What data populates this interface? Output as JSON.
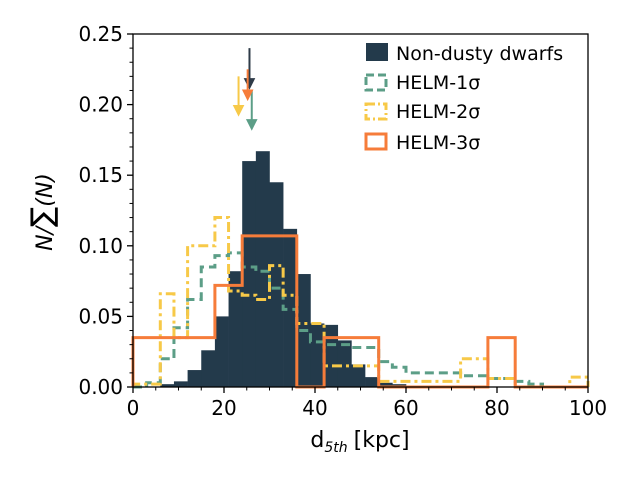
{
  "chart_data": {
    "type": "histogram",
    "xlabel": "d",
    "xlabel_sub": "5th",
    "xlabel_unit": "[kpc]",
    "ylabel_main": "N/",
    "ylabel_sum": "∑",
    "ylabel_paren": "(N)",
    "xlim": [
      0,
      100
    ],
    "ylim": [
      0,
      0.25
    ],
    "x_ticks": [
      0,
      20,
      40,
      60,
      80,
      100
    ],
    "x_tick_labels": [
      "0",
      "20",
      "40",
      "60",
      "80",
      "100"
    ],
    "y_ticks": [
      0.0,
      0.05,
      0.1,
      0.15,
      0.2,
      0.25
    ],
    "y_tick_labels": [
      "0.00",
      "0.05",
      "0.10",
      "0.15",
      "0.20",
      "0.25"
    ],
    "legend_position": "top-right",
    "series": [
      {
        "name": "Non-dusty dwarfs",
        "style": "filled",
        "color": "#233a4b",
        "bin_width": 3.0,
        "edges_start": 6,
        "values": [
          0.002,
          0.004,
          0.012,
          0.026,
          0.05,
          0.082,
          0.16,
          0.167,
          0.145,
          0.112,
          0.08,
          0.045,
          0.044,
          0.033,
          0.016,
          0.007,
          0.003,
          0.002,
          0.001
        ]
      },
      {
        "name": "HELM-1σ",
        "style": "step-dashed",
        "color": "#5c9e87",
        "bins": [
          [
            0,
            3,
            0.0
          ],
          [
            3,
            6,
            0.003
          ],
          [
            6,
            9,
            0.02
          ],
          [
            9,
            12,
            0.042
          ],
          [
            12,
            15,
            0.062
          ],
          [
            15,
            18,
            0.085
          ],
          [
            18,
            21,
            0.093
          ],
          [
            21,
            24,
            0.095
          ],
          [
            24,
            27,
            0.085
          ],
          [
            27,
            30,
            0.082
          ],
          [
            30,
            33,
            0.07
          ],
          [
            33,
            36,
            0.055
          ],
          [
            36,
            39,
            0.04
          ],
          [
            39,
            42,
            0.032
          ],
          [
            42,
            48,
            0.03
          ],
          [
            48,
            54,
            0.028
          ],
          [
            54,
            57,
            0.018
          ],
          [
            57,
            60,
            0.014
          ],
          [
            60,
            66,
            0.01
          ],
          [
            66,
            72,
            0.01
          ],
          [
            72,
            78,
            0.008
          ],
          [
            78,
            84,
            0.006
          ],
          [
            84,
            87,
            0.004
          ],
          [
            87,
            90,
            0.002
          ],
          [
            90,
            100,
            0.0
          ]
        ]
      },
      {
        "name": "HELM-2σ",
        "style": "step-dashdot",
        "color": "#f7c948",
        "bins": [
          [
            0,
            6,
            0.002
          ],
          [
            6,
            9,
            0.066
          ],
          [
            9,
            12,
            0.035
          ],
          [
            12,
            18,
            0.1
          ],
          [
            18,
            21,
            0.12
          ],
          [
            21,
            24,
            0.068
          ],
          [
            24,
            27,
            0.065
          ],
          [
            27,
            30,
            0.062
          ],
          [
            30,
            33,
            0.086
          ],
          [
            33,
            36,
            0.065
          ],
          [
            36,
            42,
            0.045
          ],
          [
            42,
            48,
            0.015
          ],
          [
            48,
            54,
            0.015
          ],
          [
            54,
            60,
            0.004
          ],
          [
            60,
            66,
            0.004
          ],
          [
            66,
            72,
            0.004
          ],
          [
            72,
            78,
            0.02
          ],
          [
            78,
            84,
            0.006
          ],
          [
            84,
            96,
            0.0
          ],
          [
            96,
            100,
            0.007
          ]
        ]
      },
      {
        "name": "HELM-3σ",
        "style": "step-solid",
        "color": "#f67c3a",
        "bins": [
          [
            0,
            18,
            0.035
          ],
          [
            18,
            24,
            0.072
          ],
          [
            24,
            36,
            0.107
          ],
          [
            36,
            42,
            0.0
          ],
          [
            42,
            54,
            0.035
          ],
          [
            54,
            78,
            0.0
          ],
          [
            78,
            84,
            0.035
          ],
          [
            84,
            100,
            0.0
          ]
        ]
      }
    ],
    "median_arrows": [
      {
        "series": "Non-dusty dwarfs",
        "x": 25.6,
        "y_from": 0.24,
        "y_to": 0.212,
        "color": "#2e3b48"
      },
      {
        "series": "HELM-1σ",
        "x": 26.1,
        "y_from": 0.21,
        "y_to": 0.183,
        "color": "#5c9e87"
      },
      {
        "series": "HELM-2σ",
        "x": 23.2,
        "y_from": 0.22,
        "y_to": 0.193,
        "color": "#f7c948"
      },
      {
        "series": "HELM-3σ",
        "x": 25.2,
        "y_from": 0.225,
        "y_to": 0.204,
        "color": "#f67c3a"
      }
    ]
  }
}
